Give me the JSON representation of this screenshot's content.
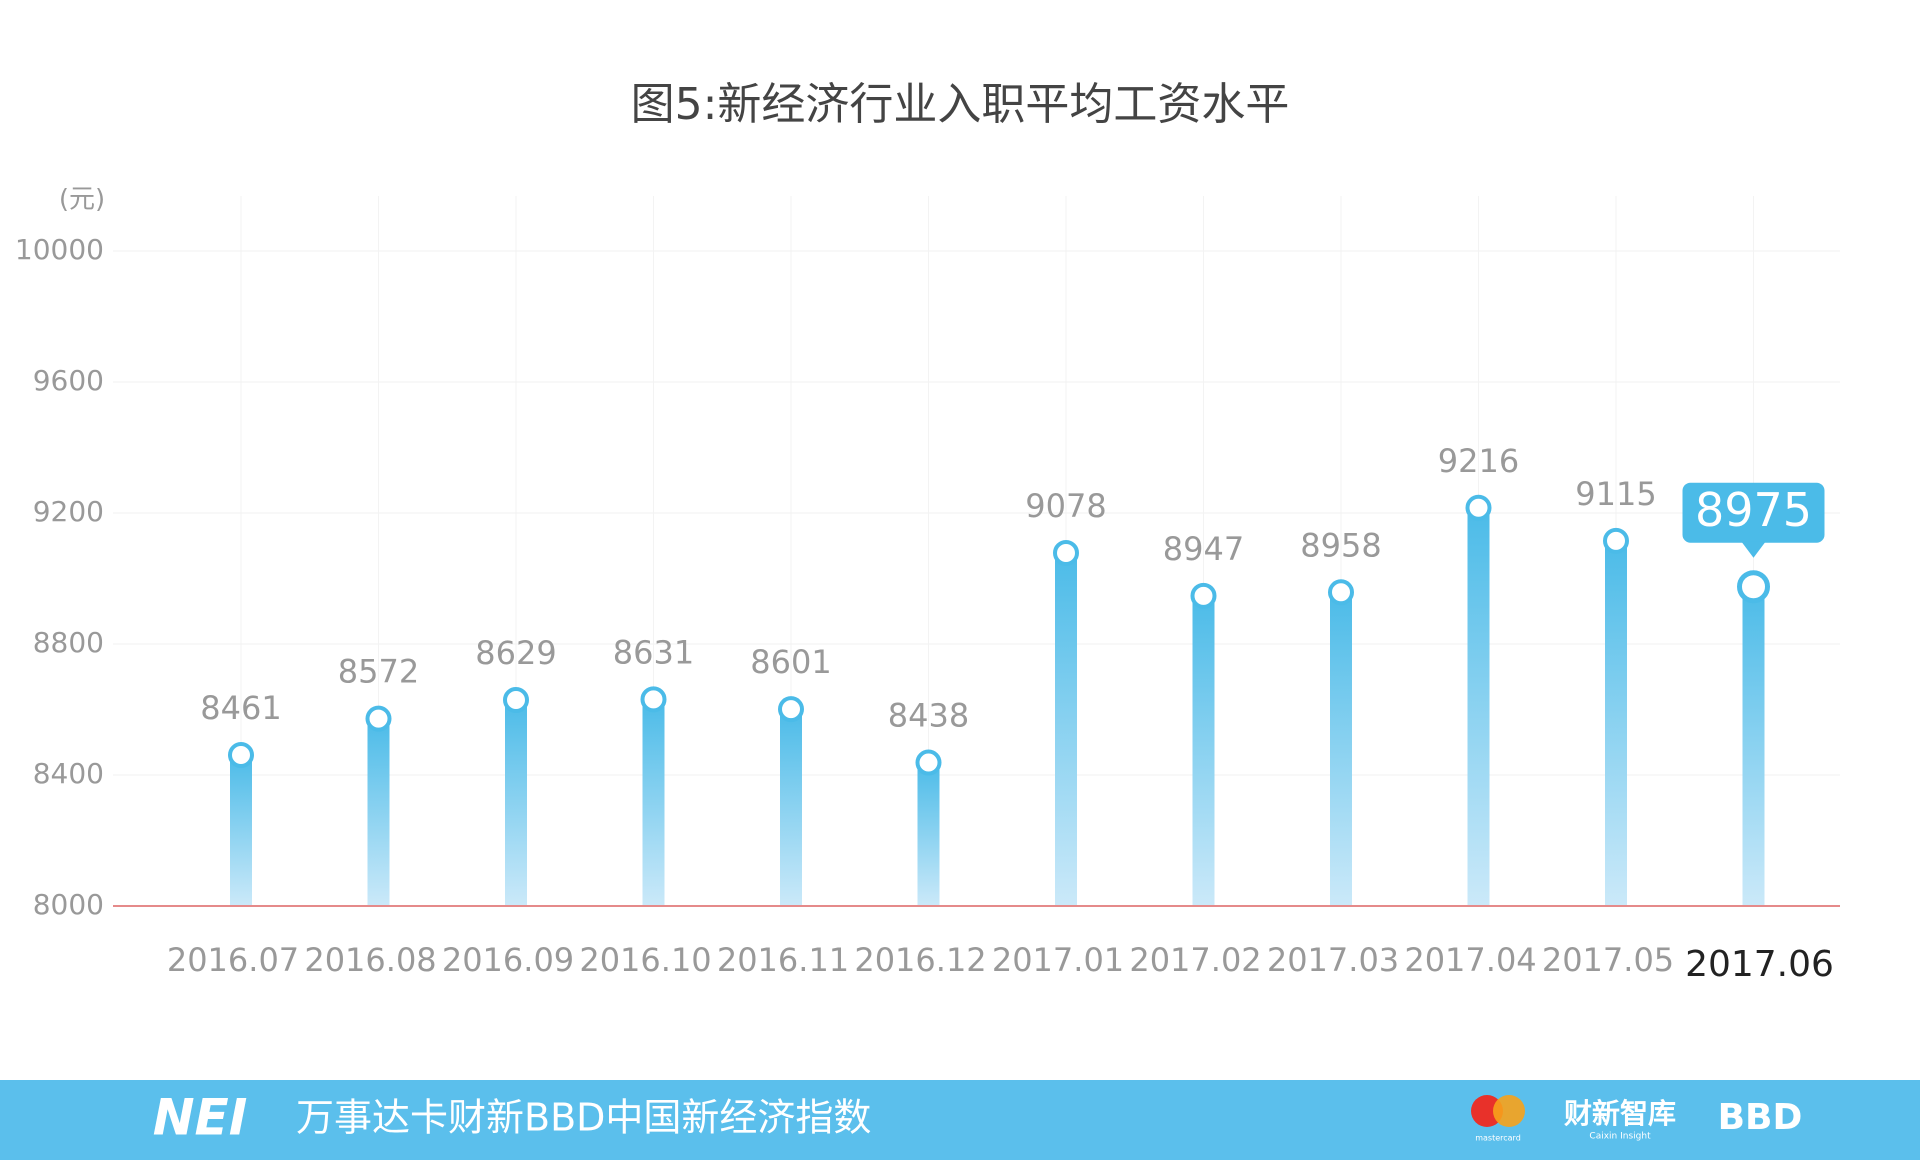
{
  "chart_data": {
    "type": "bar",
    "title": "图5:新经济行业入职平均工资水平",
    "y_unit_label": "(元)",
    "categories": [
      "2016.07",
      "2016.08",
      "2016.09",
      "2016.10",
      "2016.11",
      "2016.12",
      "2017.01",
      "2017.02",
      "2017.03",
      "2017.04",
      "2017.05",
      "2017.06"
    ],
    "values": [
      8461,
      8572,
      8629,
      8631,
      8601,
      8438,
      9078,
      8947,
      8958,
      9216,
      9115,
      8975
    ],
    "color": "#4bbbe8",
    "ylim": [
      8000,
      10000
    ],
    "yticks": [
      8000,
      8400,
      8800,
      9200,
      9600,
      10000
    ],
    "grid": true
  },
  "footer": {
    "brand": "NEI",
    "text": "万事达卡财新BBD中国新经济指数",
    "logo_mastercard": "mastercard",
    "logo_caixin": "财新智库",
    "logo_caixin_en": "Caixin Insight",
    "logo_bbd": "BBD"
  }
}
